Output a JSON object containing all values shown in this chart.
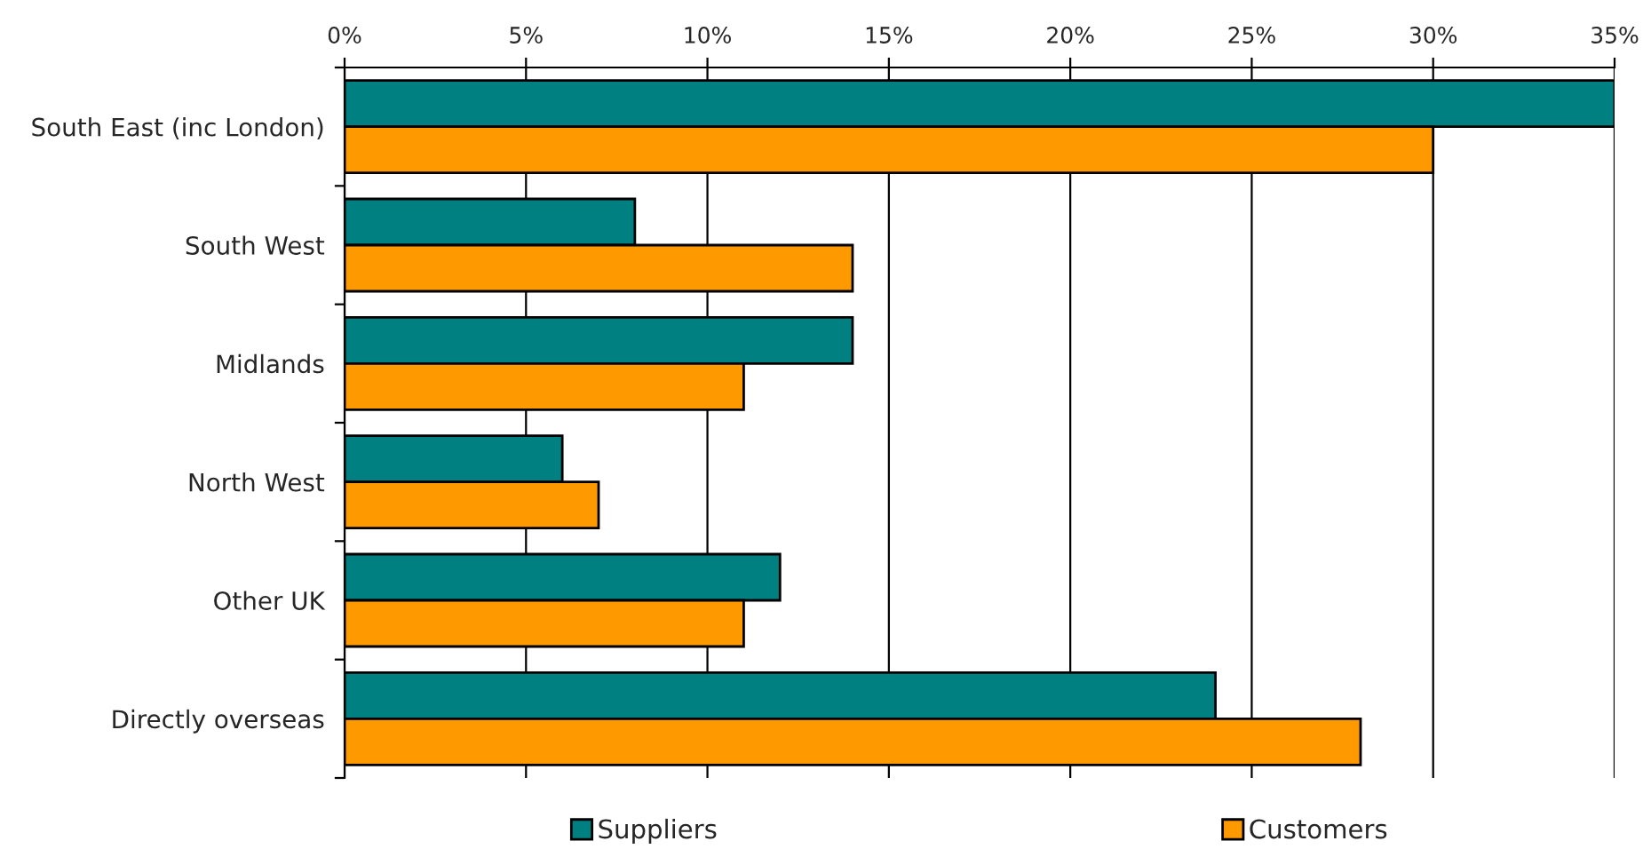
{
  "chart_data": {
    "type": "bar",
    "orientation": "horizontal",
    "categories": [
      "South East (inc London)",
      "South West",
      "Midlands",
      "North West",
      "Other UK",
      "Directly overseas"
    ],
    "series": [
      {
        "name": "Suppliers",
        "color": "#008080",
        "values": [
          35,
          8,
          14,
          6,
          12,
          24
        ]
      },
      {
        "name": "Customers",
        "color": "#ff9900",
        "values": [
          30,
          14,
          11,
          7,
          11,
          28
        ]
      }
    ],
    "xlim": [
      0,
      35
    ],
    "xticks": [
      {
        "value": 0,
        "label": "0%"
      },
      {
        "value": 5,
        "label": "5%"
      },
      {
        "value": 10,
        "label": "10%"
      },
      {
        "value": 15,
        "label": "15%"
      },
      {
        "value": 20,
        "label": "20%"
      },
      {
        "value": 25,
        "label": "25%"
      },
      {
        "value": 30,
        "label": "30%"
      },
      {
        "value": 35,
        "label": "35%"
      }
    ],
    "grid": "x",
    "legend": "bottom"
  }
}
